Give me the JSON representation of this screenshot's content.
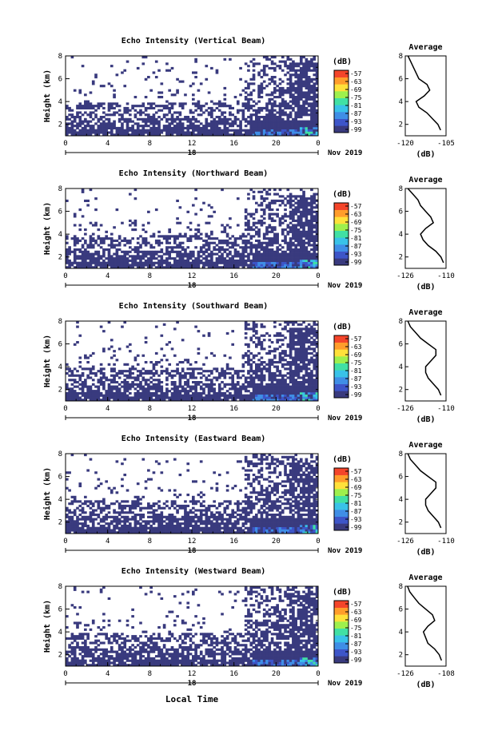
{
  "common": {
    "ylabel": "Height (km)",
    "xlabel": "Local Time",
    "colorbar_unit": "(dB)",
    "colorbar_ticks": [
      "-57",
      "-63",
      "-69",
      "-75",
      "-81",
      "-87",
      "-93",
      "-99"
    ],
    "x_ticks": [
      "0",
      "4",
      "8",
      "12",
      "16",
      "20",
      "0"
    ],
    "y_ticks": [
      "2",
      "4",
      "6",
      "8"
    ],
    "date_day": "18",
    "date_label": "Nov 2019",
    "avg_title": "Average",
    "avg_unit": "(dB)",
    "colors": [
      "#393a7e",
      "#3d55c8",
      "#3f8ee6",
      "#39c2e8",
      "#41e0a4",
      "#9ef04d",
      "#ffe13a",
      "#ff9d2b",
      "#f4452a"
    ]
  },
  "chart_data": [
    {
      "type": "heatmap",
      "title": "Echo Intensity (Vertical Beam)",
      "xlim": [
        0,
        24
      ],
      "ylim": [
        1,
        8
      ],
      "clim": [
        -99,
        -57
      ],
      "average_profile": {
        "title": "Average",
        "xlim": [
          -120,
          -105
        ],
        "xticks": [
          "-120",
          "-105"
        ],
        "ylim": [
          1,
          8
        ],
        "height_km": [
          1.5,
          2,
          2.5,
          3,
          3.5,
          4,
          4.5,
          5,
          5.5,
          6,
          6.5,
          7,
          7.5,
          8
        ],
        "values_db": [
          -107,
          -108,
          -110,
          -112,
          -115,
          -116,
          -113,
          -111,
          -112,
          -115,
          -116,
          -117,
          -118,
          -119
        ]
      }
    },
    {
      "type": "heatmap",
      "title": "Echo Intensity (Northward Beam)",
      "xlim": [
        0,
        24
      ],
      "ylim": [
        1,
        8
      ],
      "clim": [
        -99,
        -57
      ],
      "average_profile": {
        "title": "Average",
        "xlim": [
          -126,
          -110
        ],
        "xticks": [
          "-126",
          "-110"
        ],
        "ylim": [
          1,
          8
        ],
        "height_km": [
          1.5,
          2,
          2.5,
          3,
          3.5,
          4,
          4.5,
          5,
          5.5,
          6,
          6.5,
          7,
          7.5,
          8
        ],
        "values_db": [
          -111,
          -112,
          -114,
          -117,
          -119,
          -120,
          -118,
          -115,
          -116,
          -118,
          -120,
          -121,
          -123,
          -125
        ]
      }
    },
    {
      "type": "heatmap",
      "title": "Echo Intensity (Southward Beam)",
      "xlim": [
        0,
        24
      ],
      "ylim": [
        1,
        8
      ],
      "clim": [
        -99,
        -57
      ],
      "average_profile": {
        "title": "Average",
        "xlim": [
          -126,
          -110
        ],
        "xticks": [
          "-126",
          "-110"
        ],
        "ylim": [
          1,
          8
        ],
        "height_km": [
          1.5,
          2,
          2.5,
          3,
          3.5,
          4,
          4.5,
          5,
          5.5,
          6,
          6.5,
          7,
          7.5,
          8
        ],
        "values_db": [
          -112,
          -113,
          -115,
          -117,
          -118,
          -118,
          -116,
          -114,
          -114,
          -117,
          -120,
          -122,
          -124,
          -125
        ]
      }
    },
    {
      "type": "heatmap",
      "title": "Echo Intensity (Eastward Beam)",
      "xlim": [
        0,
        24
      ],
      "ylim": [
        1,
        8
      ],
      "clim": [
        -99,
        -57
      ],
      "average_profile": {
        "title": "Average",
        "xlim": [
          -126,
          -110
        ],
        "xticks": [
          "-126",
          "-110"
        ],
        "ylim": [
          1,
          8
        ],
        "height_km": [
          1.5,
          2,
          2.5,
          3,
          3.5,
          4,
          4.5,
          5,
          5.5,
          6,
          6.5,
          7,
          7.5,
          8
        ],
        "values_db": [
          -112,
          -113,
          -115,
          -117,
          -118,
          -118,
          -116,
          -114,
          -114,
          -117,
          -120,
          -122,
          -124,
          -125
        ]
      }
    },
    {
      "type": "heatmap",
      "title": "Echo Intensity (Westward Beam)",
      "xlim": [
        0,
        24
      ],
      "ylim": [
        1,
        8
      ],
      "clim": [
        -99,
        -57
      ],
      "average_profile": {
        "title": "Average",
        "xlim": [
          -126,
          -108
        ],
        "xticks": [
          "-126",
          "-108"
        ],
        "ylim": [
          1,
          8
        ],
        "height_km": [
          1.5,
          2,
          2.5,
          3,
          3.5,
          4,
          4.5,
          5,
          5.5,
          6,
          6.5,
          7,
          7.5,
          8
        ],
        "values_db": [
          -110,
          -111,
          -113,
          -116,
          -117,
          -118,
          -116,
          -113,
          -114,
          -117,
          -120,
          -122,
          -124,
          -125
        ]
      }
    }
  ]
}
